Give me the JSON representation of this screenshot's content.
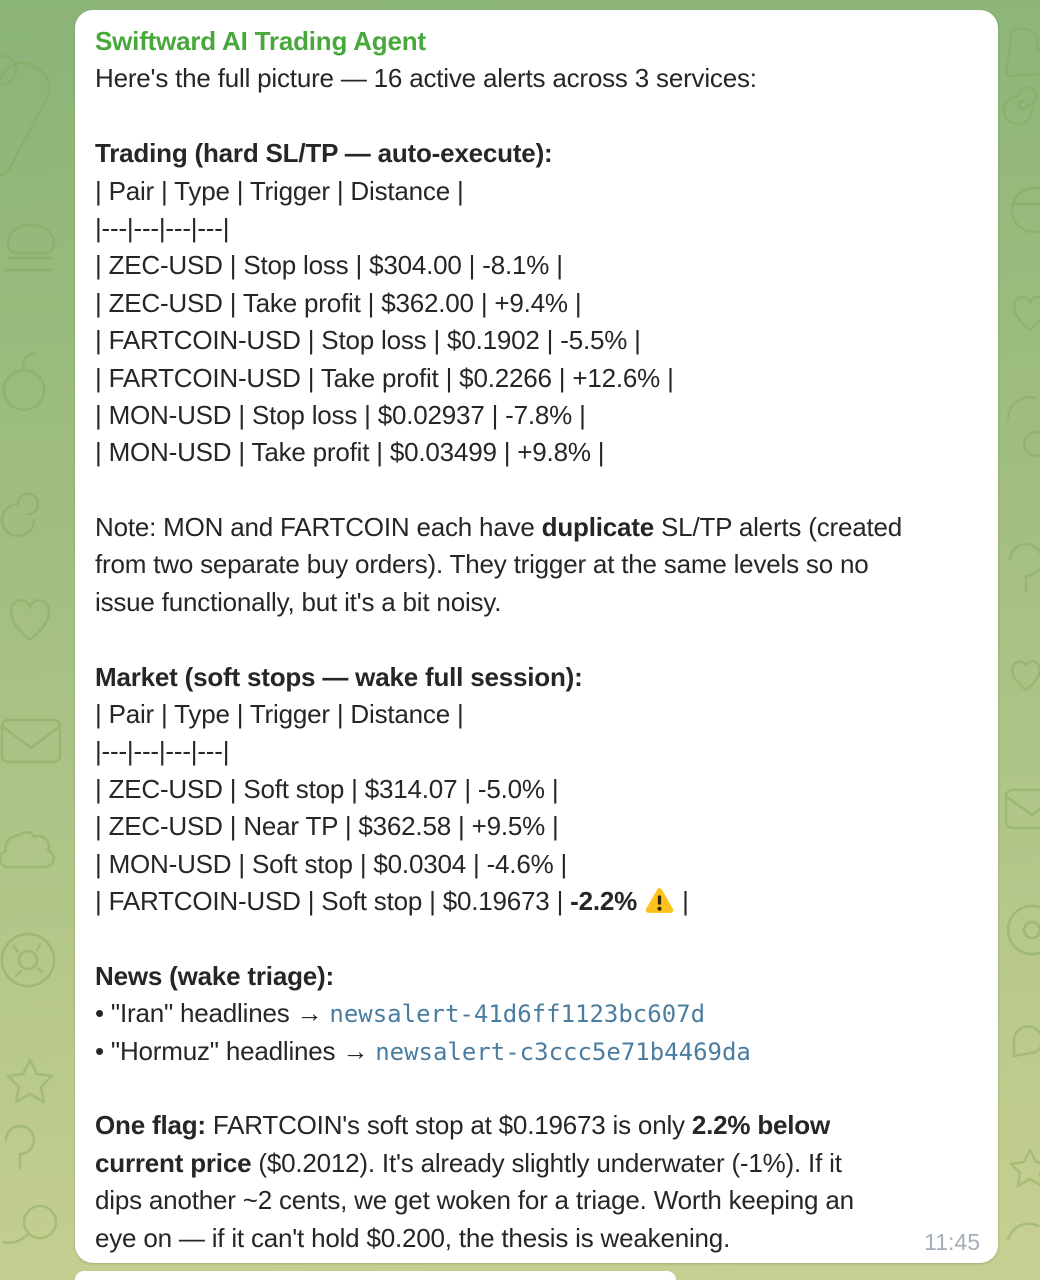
{
  "colors": {
    "bg_top": "#8bb478",
    "bg_mid": "#a6c083",
    "bg_bottom": "#c7d092",
    "doodle_stroke": "#84a95a",
    "bubble_bg": "#ffffff",
    "body_text": "#262626",
    "sender_name": "#48a83c",
    "code_text": "#4b7da0",
    "timestamp": "#a5aeb8",
    "warning_yellow": "#fcc21b"
  },
  "icons": {
    "warning": "warning-triangle-emoji"
  },
  "message": {
    "sender_name": "Swiftward AI Trading Agent",
    "timestamp": "11:45",
    "body_lines": [
      [
        {
          "text": "Here's the full picture — 16 active alerts across 3 services:"
        }
      ],
      [],
      [
        {
          "text": "Trading (hard SL/TP — auto-execute):",
          "bold": true
        }
      ],
      [
        {
          "text": "| Pair | Type | Trigger | Distance |"
        }
      ],
      [
        {
          "text": "|---|---|---|---|"
        }
      ],
      [
        {
          "text": "| ZEC-USD | Stop loss | $304.00 | -8.1% |"
        }
      ],
      [
        {
          "text": "| ZEC-USD | Take profit | $362.00 | +9.4% |"
        }
      ],
      [
        {
          "text": "| FARTCOIN-USD | Stop loss | $0.1902 | -5.5% |"
        }
      ],
      [
        {
          "text": "| FARTCOIN-USD | Take profit | $0.2266 | +12.6% |"
        }
      ],
      [
        {
          "text": "| MON-USD | Stop loss | $0.02937 | -7.8% |"
        }
      ],
      [
        {
          "text": "| MON-USD | Take profit | $0.03499 | +9.8% |"
        }
      ],
      [],
      [
        {
          "text": "Note: MON and FARTCOIN each have "
        },
        {
          "text": "duplicate",
          "bold": true
        },
        {
          "text": " SL/TP alerts (created"
        }
      ],
      [
        {
          "text": "from two separate buy orders). They trigger at the same levels so no"
        }
      ],
      [
        {
          "text": "issue functionally, but it's a bit noisy."
        }
      ],
      [],
      [
        {
          "text": "Market (soft stops — wake full session):",
          "bold": true
        }
      ],
      [
        {
          "text": "| Pair | Type | Trigger | Distance |"
        }
      ],
      [
        {
          "text": "|---|---|---|---|"
        }
      ],
      [
        {
          "text": "| ZEC-USD | Soft stop | $314.07 | -5.0% |"
        }
      ],
      [
        {
          "text": "| ZEC-USD | Near TP | $362.58 | +9.5% |"
        }
      ],
      [
        {
          "text": "| MON-USD | Soft stop | $0.0304 | -4.6% |"
        }
      ],
      [
        {
          "text": "| FARTCOIN-USD | Soft stop | $0.19673 | "
        },
        {
          "text": "-2.2%",
          "bold": true
        },
        {
          "text": " "
        },
        {
          "icon": "warning"
        },
        {
          "text": " |"
        }
      ],
      [],
      [
        {
          "text": "News (wake triage):",
          "bold": true
        }
      ],
      [
        {
          "text": "• \"Iran\" headlines → "
        },
        {
          "text": "newsalert-41d6ff1123bc607d",
          "code": true
        }
      ],
      [
        {
          "text": "• \"Hormuz\" headlines → "
        },
        {
          "text": "newsalert-c3ccc5e71b4469da",
          "code": true
        }
      ],
      [],
      [
        {
          "text": "One flag:",
          "bold": true
        },
        {
          "text": " FARTCOIN's soft stop at $0.19673 is only "
        },
        {
          "text": "2.2% below",
          "bold": true
        }
      ],
      [
        {
          "text": "current price",
          "bold": true
        },
        {
          "text": " ($0.2012). It's already slightly underwater (-1%). If it"
        }
      ],
      [
        {
          "text": "dips another ~2 cents, we get woken for a triage. Worth keeping an"
        }
      ],
      [
        {
          "text": "eye on — if it can't hold $0.200, the thesis is weakening."
        }
      ]
    ]
  },
  "next_message": {
    "visible": true
  }
}
